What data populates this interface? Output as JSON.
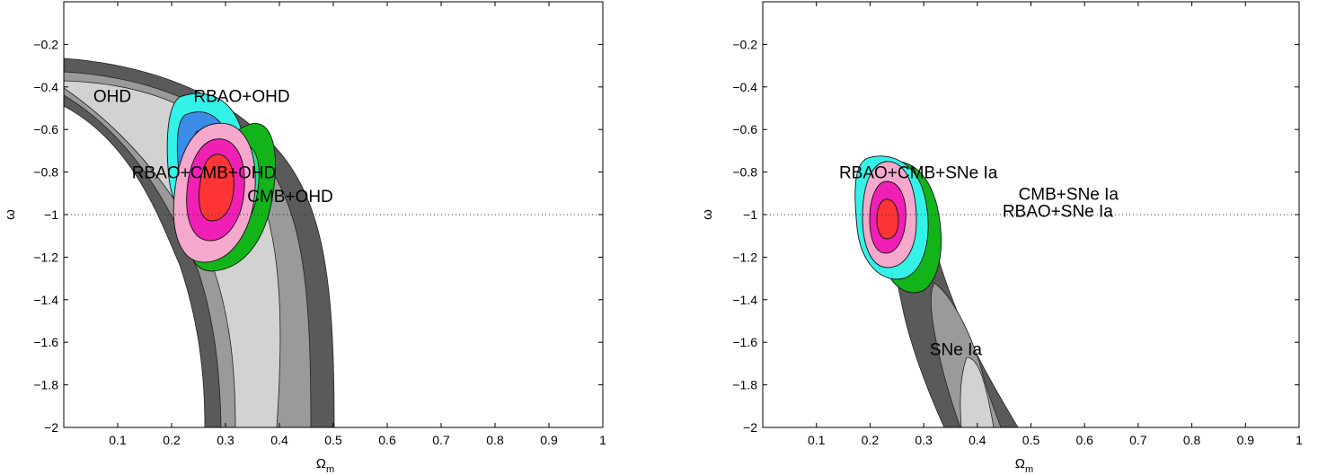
{
  "chart_data": [
    {
      "type": "contour",
      "panel": "left",
      "xlabel": "Ω",
      "xlabel_sub": "m",
      "ylabel": "ω",
      "xlim": [
        0,
        1
      ],
      "ylim": [
        -2,
        0
      ],
      "xticks": [
        "0.1",
        "0.2",
        "0.3",
        "0.4",
        "0.5",
        "0.6",
        "0.7",
        "0.8",
        "0.9",
        "1"
      ],
      "yticks": [
        "−0.2",
        "−0.4",
        "−0.6",
        "−0.8",
        "−1",
        "−1.2",
        "−1.4",
        "−1.6",
        "−1.8",
        "−2"
      ],
      "xtick_values": [
        0.1,
        0.2,
        0.3,
        0.4,
        0.5,
        0.6,
        0.7,
        0.8,
        0.9,
        1.0
      ],
      "ytick_values": [
        -0.2,
        -0.4,
        -0.6,
        -0.8,
        -1.0,
        -1.2,
        -1.4,
        -1.6,
        -1.8,
        -2.0
      ],
      "reference_line": {
        "y": -1,
        "style": "dotted"
      },
      "grid": false,
      "series": [
        {
          "name": "OHD",
          "colors": [
            "#5a5a5a",
            "#9a9a9a",
            "#d2d2d2"
          ]
        },
        {
          "name": "RBAO+OHD",
          "colors": [
            "#33f2e8",
            "#3a8ce6",
            "#2233d6"
          ]
        },
        {
          "name": "CMB+OHD",
          "colors": [
            "#12b41a",
            "#1ee888",
            "#a7ffc8"
          ]
        },
        {
          "name": "RBAO+CMB+OHD",
          "colors": [
            "#f5a8cc",
            "#f020b4",
            "#ff3434"
          ],
          "best_fit": {
            "x": 0.28,
            "y": -0.88
          }
        }
      ],
      "annotations": [
        {
          "text": "OHD",
          "x": 0.09,
          "y": -0.47
        },
        {
          "text": "RBAO+OHD",
          "x": 0.33,
          "y": -0.47
        },
        {
          "text": "RBAO+CMB+OHD",
          "x": 0.26,
          "y": -0.83
        },
        {
          "text": "CMB+OHD",
          "x": 0.42,
          "y": -0.94
        }
      ]
    },
    {
      "type": "contour",
      "panel": "right",
      "xlabel": "Ω",
      "xlabel_sub": "m",
      "ylabel": "ω",
      "xlim": [
        0,
        1
      ],
      "ylim": [
        -2,
        0
      ],
      "xticks": [
        "0.1",
        "0.2",
        "0.3",
        "0.4",
        "0.5",
        "0.6",
        "0.7",
        "0.8",
        "0.9",
        "1"
      ],
      "yticks": [
        "−0.2",
        "−0.4",
        "−0.6",
        "−0.8",
        "−1",
        "−1.2",
        "−1.4",
        "−1.6",
        "−1.8",
        "−2"
      ],
      "xtick_values": [
        0.1,
        0.2,
        0.3,
        0.4,
        0.5,
        0.6,
        0.7,
        0.8,
        0.9,
        1.0
      ],
      "ytick_values": [
        -0.2,
        -0.4,
        -0.6,
        -0.8,
        -1.0,
        -1.2,
        -1.4,
        -1.6,
        -1.8,
        -2.0
      ],
      "reference_line": {
        "y": -1,
        "style": "dotted"
      },
      "grid": false,
      "series": [
        {
          "name": "SNe Ia",
          "colors": [
            "#5a5a5a",
            "#9a9a9a",
            "#d2d2d2"
          ]
        },
        {
          "name": "RBAO+SNe Ia",
          "colors": [
            "#12b41a",
            "#33f2e8"
          ]
        },
        {
          "name": "CMB+SNe Ia",
          "colors": [
            "#33f2e8"
          ]
        },
        {
          "name": "RBAO+CMB+SNe Ia",
          "colors": [
            "#f5a8cc",
            "#f020b4",
            "#ff3434"
          ],
          "best_fit": {
            "x": 0.24,
            "y": -1.02
          }
        }
      ],
      "annotations": [
        {
          "text": "RBAO+CMB+SNe Ia",
          "x": 0.29,
          "y": -0.83
        },
        {
          "text": "CMB+SNe Ia",
          "x": 0.57,
          "y": -0.93
        },
        {
          "text": "RBAO+SNe Ia",
          "x": 0.55,
          "y": -1.01
        },
        {
          "text": "SNe Ia",
          "x": 0.36,
          "y": -1.66
        }
      ]
    }
  ]
}
